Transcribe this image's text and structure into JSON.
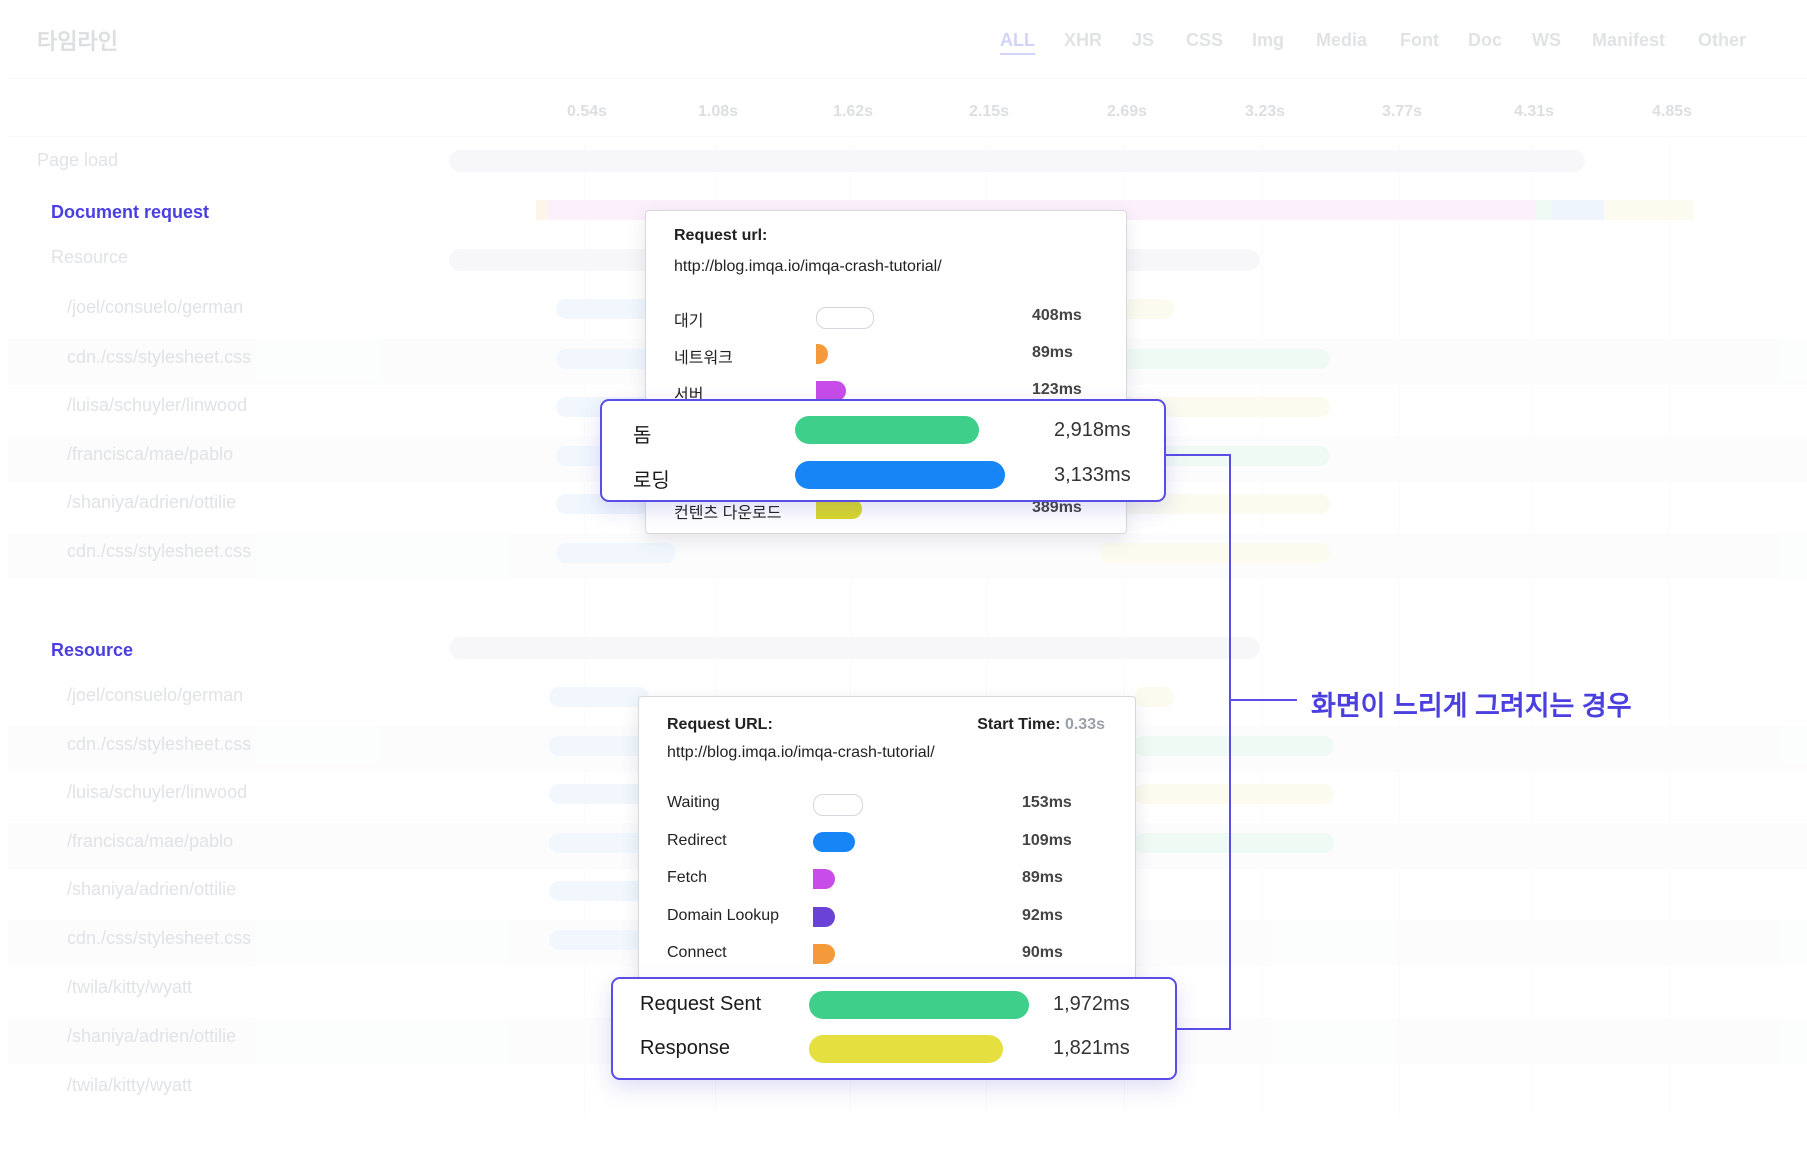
{
  "header": {
    "title": "타임라인",
    "filters": [
      "ALL",
      "XHR",
      "JS",
      "CSS",
      "Img",
      "Media",
      "Font",
      "Doc",
      "WS",
      "Manifest",
      "Other"
    ],
    "active_filter": "ALL"
  },
  "timeline": {
    "ticks": [
      "0.54s",
      "1.08s",
      "1.62s",
      "2.15s",
      "2.69s",
      "3.23s",
      "3.77s",
      "4.31s",
      "4.85s"
    ],
    "page_load_label": "Page load",
    "section1": {
      "title": "Document request",
      "resource_label": "Resource",
      "rows": [
        "/joel/consuelo/german",
        "cdn./css/stylesheet.css",
        "/luisa/schuyler/linwood",
        "/francisca/mae/pablo",
        "/shaniya/adrien/ottilie",
        "cdn./css/stylesheet.css"
      ]
    },
    "section2": {
      "title": "Resource",
      "rows": [
        "/joel/consuelo/german",
        "cdn./css/stylesheet.css",
        "/luisa/schuyler/linwood",
        "/francisca/mae/pablo",
        "/shaniya/adrien/ottilie",
        "cdn./css/stylesheet.css",
        "/twila/kitty/wyatt",
        "/shaniya/adrien/ottilie",
        "/twila/kitty/wyatt"
      ]
    }
  },
  "popup1": {
    "url_label": "Request url:",
    "url": "http://blog.imqa.io/imqa-crash-tutorial/",
    "rows": [
      {
        "label": "대기",
        "value": "408ms",
        "color": "#ffffff"
      },
      {
        "label": "네트워크",
        "value": "89ms",
        "color": "#f59a3a"
      },
      {
        "label": "서버",
        "value": "123ms",
        "color": "#c84ce8"
      },
      {
        "label": "컨텐츠 다운로드",
        "value": "389ms",
        "color": "#d9d92a"
      }
    ],
    "highlight": [
      {
        "label": "돔",
        "value": "2,918ms",
        "color": "#3ecf8a"
      },
      {
        "label": "로딩",
        "value": "3,133ms",
        "color": "#1785f5"
      }
    ]
  },
  "popup2": {
    "url_label": "Request URL:",
    "start_label": "Start Time:",
    "start_value": "0.33s",
    "url": "http://blog.imqa.io/imqa-crash-tutorial/",
    "rows": [
      {
        "label": "Waiting",
        "value": "153ms",
        "color": "#ffffff"
      },
      {
        "label": "Redirect",
        "value": "109ms",
        "color": "#1785f5"
      },
      {
        "label": "Fetch",
        "value": "89ms",
        "color": "#c84ce8"
      },
      {
        "label": "Domain Lookup",
        "value": "92ms",
        "color": "#6a43d6"
      },
      {
        "label": "Connect",
        "value": "90ms",
        "color": "#f59a3a"
      }
    ],
    "highlight": [
      {
        "label": "Request Sent",
        "value": "1,972ms",
        "color": "#3ecf8a"
      },
      {
        "label": "Response",
        "value": "1,821ms",
        "color": "#e5e040"
      }
    ]
  },
  "callout": "화면이 느리게 그려지는 경우",
  "colors": {
    "accent": "#4b3fe0",
    "border": "#5a4de6"
  }
}
